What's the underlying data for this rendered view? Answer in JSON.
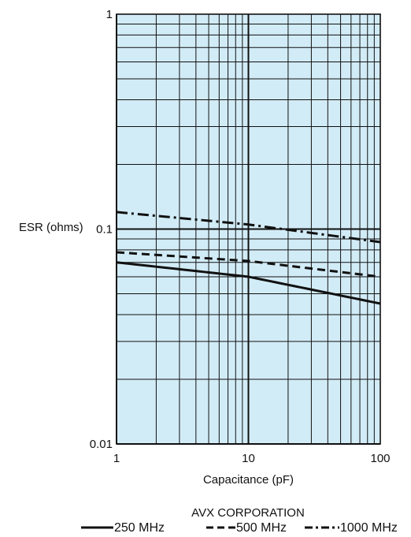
{
  "chart_data": {
    "type": "line",
    "xlabel": "Capacitance (pF)",
    "ylabel": "ESR (ohms)",
    "x_scale": "log",
    "y_scale": "log",
    "xlim": [
      1,
      100
    ],
    "ylim": [
      0.01,
      1
    ],
    "x_ticks": [
      "1",
      "10",
      "100"
    ],
    "y_ticks": [
      "0.01",
      "0.1",
      "1"
    ],
    "grid": true,
    "legend_position": "bottom",
    "caption": "AVX CORPORATION",
    "colors": {
      "plot_background": "#d2ecf7",
      "grid": "#111111",
      "lines": "#111111"
    },
    "series": [
      {
        "name": "250 MHz",
        "dash": "solid",
        "x": [
          1,
          10,
          100
        ],
        "y": [
          0.07,
          0.06,
          0.045
        ]
      },
      {
        "name": "500 MHz",
        "dash": "dashed",
        "x": [
          1,
          10,
          100
        ],
        "y": [
          0.078,
          0.071,
          0.06
        ]
      },
      {
        "name": "1000 MHz",
        "dash": "dash-dot",
        "x": [
          1,
          10,
          100
        ],
        "y": [
          0.12,
          0.105,
          0.087
        ]
      }
    ]
  }
}
